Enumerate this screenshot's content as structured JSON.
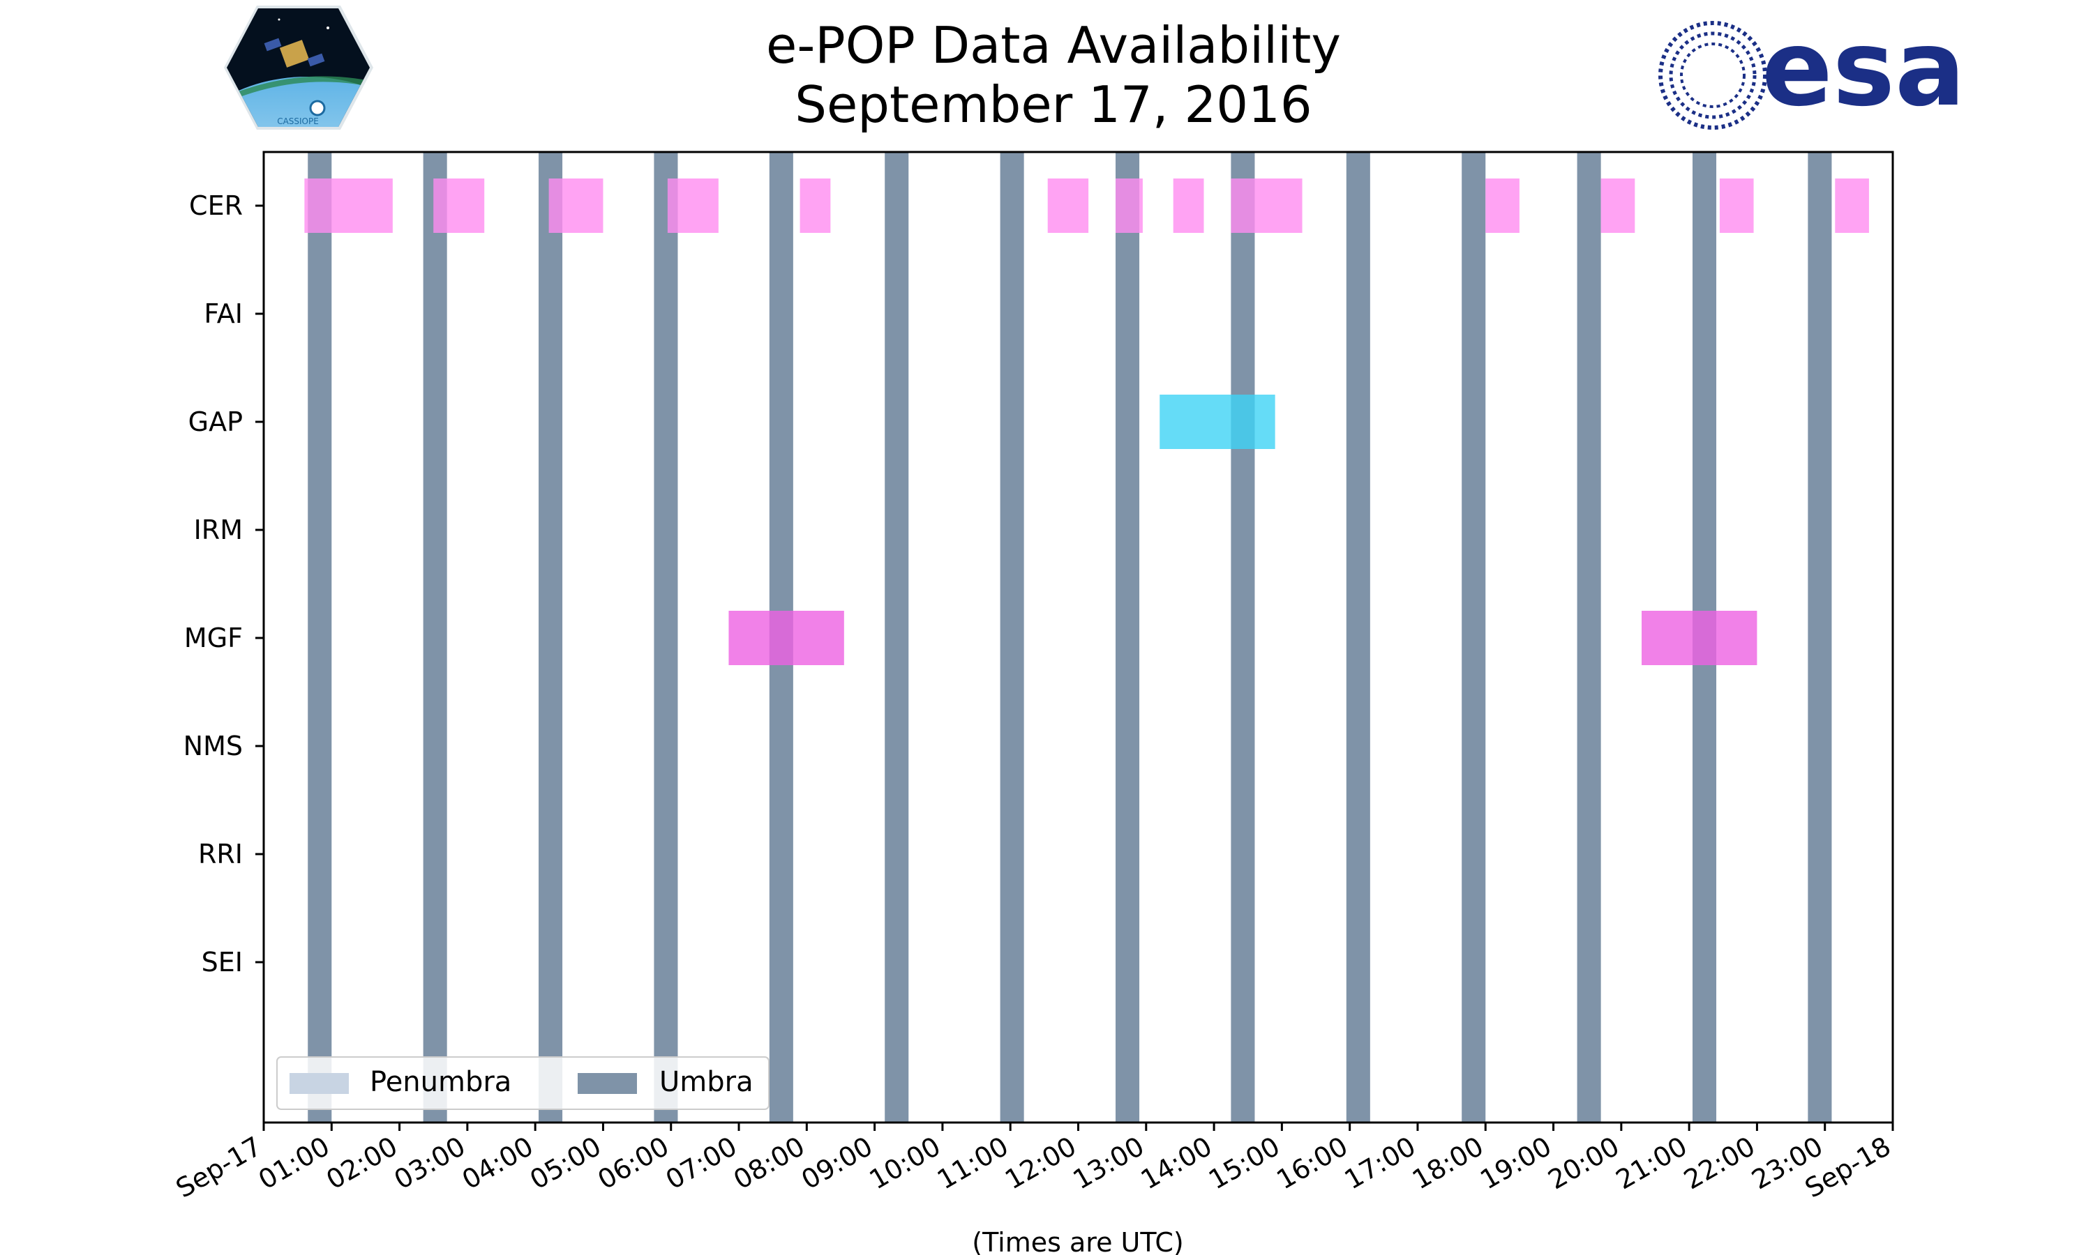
{
  "chart_data": {
    "type": "timeline",
    "title_line1": "e-POP Data Availability",
    "title_line2": "September 17, 2016",
    "xlabel": "(Times are UTC)",
    "x_range_hours": [
      0,
      24
    ],
    "x_ticks": [
      "Sep-17",
      "01:00",
      "02:00",
      "03:00",
      "04:00",
      "05:00",
      "06:00",
      "07:00",
      "08:00",
      "09:00",
      "10:00",
      "11:00",
      "12:00",
      "13:00",
      "14:00",
      "15:00",
      "16:00",
      "17:00",
      "18:00",
      "19:00",
      "20:00",
      "21:00",
      "22:00",
      "23:00",
      "Sep-18"
    ],
    "instruments": [
      "CER",
      "FAI",
      "GAP",
      "IRM",
      "MGF",
      "NMS",
      "RRI",
      "SEI"
    ],
    "legend": {
      "placement": "lower-left",
      "entries": [
        {
          "label": "Penumbra",
          "color": "#c8d4e3"
        },
        {
          "label": "Umbra",
          "color": "#7f93a8"
        }
      ]
    },
    "umbra_periods_hours": [
      [
        0.65,
        1.0
      ],
      [
        2.35,
        2.7
      ],
      [
        4.05,
        4.4
      ],
      [
        5.75,
        6.1
      ],
      [
        7.45,
        7.8
      ],
      [
        9.15,
        9.5
      ],
      [
        10.85,
        11.2
      ],
      [
        12.55,
        12.9
      ],
      [
        14.25,
        14.6
      ],
      [
        15.95,
        16.3
      ],
      [
        17.65,
        18.0
      ],
      [
        19.35,
        19.7
      ],
      [
        21.05,
        21.4
      ],
      [
        22.75,
        23.1
      ]
    ],
    "colors": {
      "CER": "#ff8cf0",
      "GAP": "#3fd3f5",
      "MGF": "#ee62e2",
      "umbra": "#7f93a8",
      "penumbra": "#c8d4e3"
    },
    "availability_hours": {
      "CER": [
        [
          0.6,
          1.9
        ],
        [
          2.5,
          3.25
        ],
        [
          4.2,
          5.0
        ],
        [
          5.95,
          6.7
        ],
        [
          7.9,
          8.35
        ],
        [
          11.55,
          12.15
        ],
        [
          12.55,
          12.95
        ],
        [
          13.4,
          13.85
        ],
        [
          14.25,
          15.3
        ],
        [
          18.0,
          18.5
        ],
        [
          19.7,
          20.2
        ],
        [
          21.45,
          21.95
        ],
        [
          23.15,
          23.65
        ]
      ],
      "GAP": [
        [
          13.2,
          14.9
        ]
      ],
      "MGF": [
        [
          6.85,
          8.55
        ],
        [
          20.3,
          22.0
        ]
      ]
    }
  },
  "logos": {
    "cassiope_text": "CASSIOPE",
    "esa_text": "esa"
  }
}
